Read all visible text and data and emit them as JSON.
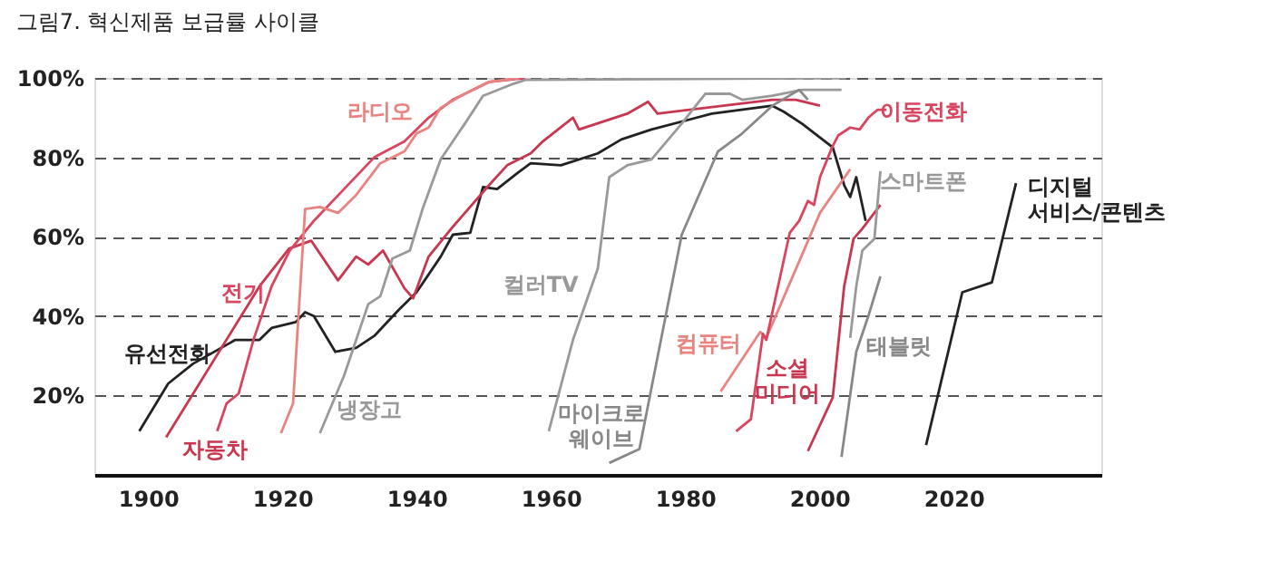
{
  "chart_data": {
    "type": "line",
    "title": "그림7.   혁신제품 보급률 사이클",
    "xlim": [
      1892,
      2042
    ],
    "xticks": [
      1900,
      1920,
      1940,
      1960,
      1980,
      2000,
      2020
    ],
    "ylim": [
      0,
      100
    ],
    "yticks": [
      {
        "value": 20,
        "label": "20%"
      },
      {
        "value": 40,
        "label": "40%"
      },
      {
        "value": 60,
        "label": "60%"
      },
      {
        "value": 80,
        "label": "80%"
      },
      {
        "value": 100,
        "label": "100%"
      }
    ],
    "grid": "y",
    "legend": false,
    "line_style": "solid",
    "marker": "none",
    "series": [
      {
        "name": "유선전화",
        "color": "#222222",
        "x": [
          1898.7,
          1903,
          1906.7,
          1913,
          1916.6,
          1918.4,
          1922,
          1923.4,
          1924.7,
          1927.9,
          1931,
          1933.7,
          1937.3,
          1940,
          1943.6,
          1945.4,
          1948,
          1949.9,
          1952,
          1955,
          1957,
          1961.5,
          1967,
          1970.5,
          1975,
          1984,
          1993,
          1994.7,
          1997.4,
          2002,
          2003.7,
          2004.6,
          2005.5,
          2006.9
        ],
        "values": [
          11,
          23,
          28,
          34,
          34,
          37,
          38.5,
          41,
          40,
          31,
          32,
          35,
          41.5,
          46,
          55,
          60.5,
          61,
          72.5,
          72,
          76,
          78.5,
          78,
          81,
          84.5,
          87,
          91,
          93,
          91.5,
          88.5,
          82.5,
          73,
          70,
          75,
          64
        ]
      },
      {
        "name": "자동차",
        "color": "#c8374f",
        "x": [
          1902.7,
          1916.6,
          1921,
          1924.3,
          1928.3,
          1931,
          1932.8,
          1935,
          1938.2,
          1939.5,
          1941.8,
          1945.4,
          1950.8,
          1953.5,
          1957,
          1958.8,
          1963.3,
          1964.2,
          1971.4,
          1974.5,
          1975.9,
          1993,
          1996.5,
          2000.1
        ],
        "values": [
          9.5,
          47.5,
          57,
          59,
          49,
          55,
          53,
          56.5,
          47,
          44.5,
          55,
          62.5,
          73,
          78,
          81,
          84,
          90,
          87,
          91,
          94,
          91,
          94.5,
          94.5,
          93
        ]
      },
      {
        "name": "전기",
        "color": "#d9455f",
        "x": [
          1910.3,
          1911.7,
          1913.5,
          1915.7,
          1918.4,
          1921.1,
          1924.7,
          1929.2,
          1933.7,
          1938.2,
          1941.8,
          1945.4,
          1950.8,
          1956.2
        ],
        "values": [
          11,
          18,
          20.5,
          34,
          47.5,
          56.5,
          64,
          72,
          80,
          84,
          90,
          94.5,
          99,
          100
        ]
      },
      {
        "name": "라디오",
        "color": "#e8837f",
        "x": [
          1919.8,
          1921.6,
          1923.4,
          1925.6,
          1928.3,
          1931,
          1934.6,
          1938.2,
          1940,
          1941.8,
          1943.6,
          1947.2,
          1950.8,
          1955.3
        ],
        "values": [
          10.5,
          18,
          67,
          67.5,
          66,
          70.5,
          78.5,
          81.5,
          86,
          87.5,
          92.5,
          96,
          99,
          100
        ]
      },
      {
        "name": "냉장고",
        "color": "#999999",
        "x": [
          1925.6,
          1929.2,
          1932.8,
          1934.6,
          1936.4,
          1939,
          1940.9,
          1943.6,
          1947.2,
          1949.9,
          1954.4,
          1956.2,
          2004
        ],
        "values": [
          10.5,
          25,
          43,
          45,
          54.5,
          56.5,
          67,
          79.5,
          88.5,
          95.5,
          98.5,
          99.5,
          100
        ]
      },
      {
        "name": "컬러TV",
        "color": "#999999",
        "x": [
          1959.7,
          1963.3,
          1967,
          1968.7,
          1971.4,
          1975,
          1979.5,
          1983,
          1986.7,
          1988.5,
          1993,
          1997.4,
          2003.3
        ],
        "values": [
          11,
          34,
          52,
          75,
          78,
          79.5,
          88.5,
          96,
          96,
          94.5,
          95.5,
          97,
          97
        ]
      },
      {
        "name": "마이크로 웨이브",
        "color": "#888888",
        "x": [
          1968.7,
          1973.2,
          1979.5,
          1984.9,
          1988.5,
          1993,
          1997,
          1998.3
        ],
        "values": [
          3,
          6.5,
          60.5,
          81.5,
          86,
          93,
          97,
          94.5
        ]
      },
      {
        "name": "컴퓨터",
        "color": "#e8837f",
        "x": [
          1985.3,
          1991.2,
          1992.1,
          2000.1,
          2004.6
        ],
        "values": [
          21,
          36,
          34.5,
          66,
          77
        ]
      },
      {
        "name": "소셜 미디어",
        "color": "#c8374f",
        "x": [
          1998.3,
          2002,
          2003.7,
          2005.1,
          2006.4,
          2009.1
        ],
        "values": [
          6,
          19.5,
          47.5,
          59.5,
          62,
          68
        ]
      },
      {
        "name": "태블릿",
        "color": "#888888",
        "x": [
          2003.3,
          2005.5,
          2007.3,
          2009.1
        ],
        "values": [
          4.5,
          31,
          40,
          50
        ]
      },
      {
        "name": "스마트폰",
        "color": "#999999",
        "x": [
          2004.6,
          2005.5,
          2006.4,
          2008.2,
          2009.1
        ],
        "values": [
          34.5,
          47.5,
          56.5,
          59.5,
          76.5
        ]
      },
      {
        "name": "이동전화",
        "color": "#d9455f",
        "x": [
          1987.6,
          1989.8,
          1991.6,
          1992.1,
          1995.6,
          1997,
          1998.3,
          1999.2,
          2000.1,
          2001.9,
          2002.8,
          2004.6,
          2006,
          2007.3,
          2008.7,
          2010
        ],
        "values": [
          11,
          14,
          35.5,
          34,
          61,
          64,
          69,
          68,
          75,
          82.5,
          85.5,
          87.5,
          87,
          90,
          92,
          92
        ]
      },
      {
        "name": "디지털 서비스/콘텐츠",
        "color": "#222222",
        "x": [
          2015.9,
          2021.3,
          2025.7,
          2029.3
        ],
        "values": [
          7.5,
          46,
          48.5,
          73.5
        ]
      }
    ]
  }
}
